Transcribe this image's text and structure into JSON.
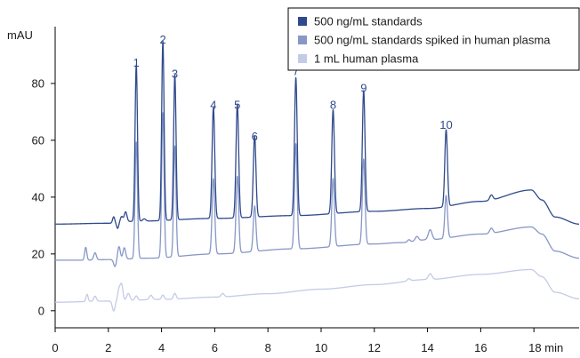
{
  "chart_data": {
    "type": "line",
    "y_unit_label": "mAU",
    "x_tick_labels": [
      "0",
      "2",
      "4",
      "6",
      "8",
      "10",
      "12",
      "14",
      "16",
      "18 min"
    ],
    "x_ticks": [
      0,
      2,
      4,
      6,
      8,
      10,
      12,
      14,
      16,
      18
    ],
    "y_tick_labels": [
      "0",
      "20",
      "40",
      "60",
      "80"
    ],
    "y_ticks": [
      0,
      20,
      40,
      60,
      80
    ],
    "xlim": [
      0,
      19.7
    ],
    "ylim": [
      -6,
      100
    ],
    "grid": false,
    "legend_position": "top-right",
    "legend": [
      {
        "label": "500 ng/mL standards",
        "color": "#2f4a8c"
      },
      {
        "label": "500 ng/mL standards spiked in human plasma",
        "color": "#8797c6"
      },
      {
        "label": "1 mL human plasma",
        "color": "#c3cbe6"
      }
    ],
    "peak_labels": [
      {
        "text": "1",
        "x": 3.05,
        "y": 86
      },
      {
        "text": "2",
        "x": 4.05,
        "y": 94
      },
      {
        "text": "3",
        "x": 4.5,
        "y": 82
      },
      {
        "text": "4",
        "x": 5.95,
        "y": 71
      },
      {
        "text": "5",
        "x": 6.85,
        "y": 71
      },
      {
        "text": "6",
        "x": 7.5,
        "y": 60
      },
      {
        "text": "7",
        "x": 9.05,
        "y": 83
      },
      {
        "text": "8",
        "x": 10.45,
        "y": 71
      },
      {
        "text": "9",
        "x": 11.6,
        "y": 77
      },
      {
        "text": "10",
        "x": 14.7,
        "y": 64
      }
    ],
    "series": [
      {
        "name": "500 ng/mL standards",
        "color": "#2f4a8c",
        "baseline": [
          [
            0,
            30.5
          ],
          [
            2.0,
            30.8
          ],
          [
            3.0,
            31.5
          ],
          [
            6.0,
            32.5
          ],
          [
            9.0,
            33.5
          ],
          [
            12.0,
            35.0
          ],
          [
            14.0,
            36.0
          ],
          [
            16.0,
            38.5
          ],
          [
            17.9,
            42.5
          ],
          [
            18.3,
            39.0
          ],
          [
            18.8,
            33.0
          ],
          [
            19.7,
            30.5
          ]
        ],
        "peaks": [
          [
            2.2,
            2.2,
            0.04
          ],
          [
            2.35,
            -2.0,
            0.04
          ],
          [
            2.5,
            2.0,
            0.05
          ],
          [
            2.65,
            3.5,
            0.05
          ],
          [
            3.05,
            55.0,
            0.045
          ],
          [
            3.35,
            0.8,
            0.06
          ],
          [
            4.05,
            63.0,
            0.045
          ],
          [
            4.5,
            51.0,
            0.045
          ],
          [
            5.95,
            39.0,
            0.05
          ],
          [
            6.85,
            40.0,
            0.05
          ],
          [
            7.5,
            28.5,
            0.05
          ],
          [
            9.05,
            48.5,
            0.05
          ],
          [
            10.45,
            36.5,
            0.05
          ],
          [
            11.6,
            42.5,
            0.05
          ],
          [
            14.7,
            27.0,
            0.05
          ],
          [
            16.4,
            1.8,
            0.06
          ]
        ]
      },
      {
        "name": "500 ng/mL standards spiked in human plasma",
        "color": "#8797c6",
        "baseline": [
          [
            0,
            17.8
          ],
          [
            1.0,
            17.8
          ],
          [
            2.0,
            18.0
          ],
          [
            3.5,
            18.5
          ],
          [
            6.0,
            20.0
          ],
          [
            9.0,
            21.8
          ],
          [
            12.0,
            23.5
          ],
          [
            13.0,
            24.0
          ],
          [
            14.0,
            25.0
          ],
          [
            16.0,
            27.0
          ],
          [
            17.9,
            29.5
          ],
          [
            18.3,
            27.0
          ],
          [
            18.8,
            21.0
          ],
          [
            19.7,
            18.5
          ]
        ],
        "peaks": [
          [
            1.15,
            4.5,
            0.04
          ],
          [
            1.5,
            2.5,
            0.05
          ],
          [
            2.25,
            -2.5,
            0.05
          ],
          [
            2.4,
            4.5,
            0.05
          ],
          [
            2.6,
            4.0,
            0.05
          ],
          [
            3.05,
            41.0,
            0.045
          ],
          [
            4.05,
            51.0,
            0.045
          ],
          [
            4.5,
            39.0,
            0.045
          ],
          [
            5.95,
            26.5,
            0.05
          ],
          [
            6.85,
            27.0,
            0.05
          ],
          [
            7.5,
            16.0,
            0.05
          ],
          [
            9.05,
            37.0,
            0.05
          ],
          [
            10.45,
            24.0,
            0.05
          ],
          [
            11.6,
            30.0,
            0.05
          ],
          [
            13.3,
            0.8,
            0.05
          ],
          [
            13.6,
            1.5,
            0.06
          ],
          [
            14.1,
            3.5,
            0.07
          ],
          [
            14.7,
            15.0,
            0.05
          ],
          [
            16.4,
            1.8,
            0.06
          ]
        ]
      },
      {
        "name": "1 mL human plasma",
        "color": "#c3cbe6",
        "baseline": [
          [
            0,
            3.0
          ],
          [
            2.0,
            3.4
          ],
          [
            4.0,
            4.0
          ],
          [
            6.0,
            4.8
          ],
          [
            8.0,
            6.0
          ],
          [
            10.0,
            7.6
          ],
          [
            12.0,
            9.2
          ],
          [
            14.0,
            11.0
          ],
          [
            16.0,
            12.8
          ],
          [
            17.9,
            14.5
          ],
          [
            18.3,
            12.0
          ],
          [
            18.8,
            6.5
          ],
          [
            19.7,
            4.2
          ]
        ],
        "peaks": [
          [
            1.2,
            2.5,
            0.04
          ],
          [
            1.5,
            1.8,
            0.05
          ],
          [
            2.2,
            -3.5,
            0.05
          ],
          [
            2.4,
            4.0,
            0.05
          ],
          [
            2.5,
            5.5,
            0.05
          ],
          [
            2.75,
            2.5,
            0.06
          ],
          [
            3.05,
            1.5,
            0.05
          ],
          [
            3.6,
            1.5,
            0.06
          ],
          [
            4.05,
            1.5,
            0.05
          ],
          [
            4.5,
            2.0,
            0.05
          ],
          [
            6.3,
            1.2,
            0.06
          ],
          [
            13.3,
            0.8,
            0.06
          ],
          [
            14.1,
            2.0,
            0.07
          ]
        ]
      }
    ]
  }
}
